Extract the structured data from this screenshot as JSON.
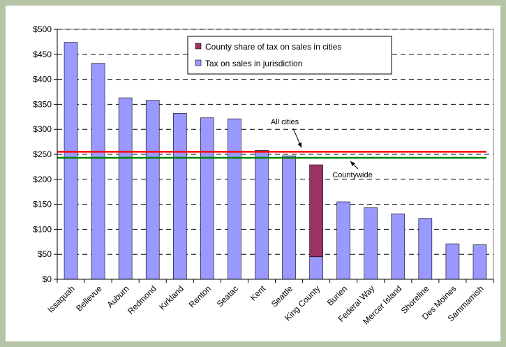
{
  "chart_data": {
    "type": "bar",
    "stacked": true,
    "title": "",
    "xlabel": "",
    "ylabel": "",
    "ylim": [
      0,
      500
    ],
    "ytick_step": 50,
    "ytick_format": "$",
    "grid": "horizontal-dashed",
    "legend_position": "top-center",
    "categories": [
      "Issaquah",
      "Bellevue",
      "Auburn",
      "Redmond",
      "Kirkland",
      "Renton",
      "Seatac",
      "Kent",
      "Seattle",
      "King County",
      "Burien",
      "Federal Way",
      "Mercer Island",
      "Shoreline",
      "Des Moines",
      "Sammamish"
    ],
    "series": [
      {
        "name": "Tax on sales in jurisdiction",
        "color": "#9999ff",
        "values": [
          474,
          432,
          363,
          358,
          332,
          323,
          321,
          258,
          247,
          45,
          155,
          143,
          131,
          122,
          71,
          69
        ]
      },
      {
        "name": "County share of tax on sales in cities",
        "color": "#993366",
        "values": [
          0,
          0,
          0,
          0,
          0,
          0,
          0,
          0,
          0,
          184,
          0,
          0,
          0,
          0,
          0,
          0
        ]
      }
    ],
    "reference_lines": [
      {
        "label": "All cities",
        "value": 255,
        "color": "#ff0000"
      },
      {
        "label": "Countywide",
        "value": 243,
        "color": "#008000"
      }
    ]
  }
}
